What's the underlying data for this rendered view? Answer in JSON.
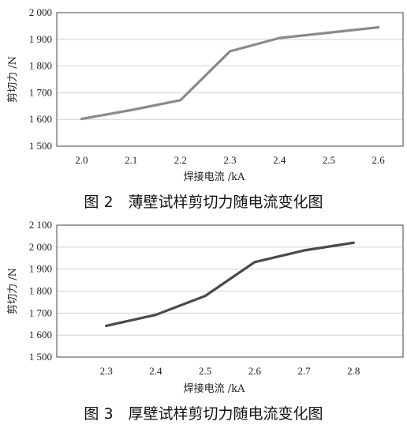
{
  "chart_data": [
    {
      "type": "line",
      "caption": "图 2　薄壁试样剪切力随电流变化图",
      "xlabel": "焊接电流 /kA",
      "ylabel": "剪切力 /N",
      "x": [
        2.0,
        2.1,
        2.2,
        2.3,
        2.4,
        2.5,
        2.6
      ],
      "x_tick_labels": [
        "2.0",
        "2.1",
        "2.2",
        "2.3",
        "2.4",
        "2.5",
        "2.6"
      ],
      "xlim": [
        1.95,
        2.65
      ],
      "ylim": [
        1500,
        2000
      ],
      "y_ticks": [
        1500,
        1600,
        1700,
        1800,
        1900,
        2000
      ],
      "y_tick_labels": [
        "1 500",
        "1 600",
        "1 700",
        "1 800",
        "1 900",
        "2 000"
      ],
      "grid": true,
      "series": [
        {
          "values": [
            1602,
            1635,
            1672,
            1855,
            1905,
            1925,
            1945
          ],
          "color": "#8a8a8a"
        }
      ]
    },
    {
      "type": "line",
      "caption": "图 3　厚壁试样剪切力随电流变化图",
      "xlabel": "焊接电流 /kA",
      "ylabel": "剪切力 /N",
      "x": [
        2.3,
        2.4,
        2.5,
        2.6,
        2.7,
        2.8
      ],
      "x_tick_labels": [
        "2.3",
        "2.4",
        "2.5",
        "2.6",
        "2.7",
        "2.8"
      ],
      "xlim": [
        2.2,
        2.9
      ],
      "ylim": [
        1500,
        2100
      ],
      "y_ticks": [
        1500,
        1600,
        1700,
        1800,
        1900,
        2000,
        2100
      ],
      "y_tick_labels": [
        "1 500",
        "1 600",
        "1 700",
        "1 800",
        "1 900",
        "2 000",
        "2 100"
      ],
      "grid": true,
      "series": [
        {
          "values": [
            1642,
            1692,
            1778,
            1932,
            1985,
            2020
          ],
          "color": "#4a4a4a"
        }
      ]
    }
  ]
}
